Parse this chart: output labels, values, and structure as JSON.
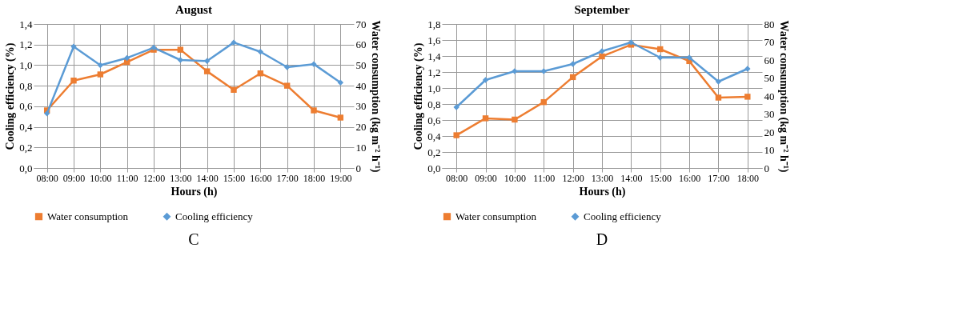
{
  "chart_data": [
    {
      "type": "line",
      "title": "August",
      "xlabel": "Hours (h)",
      "ylabel": "Cooling efficiency (%)",
      "y2label": "Water consumption (kg m⁻² h⁻¹)",
      "categories": [
        "08:00",
        "09:00",
        "10:00",
        "11:00",
        "12:00",
        "13:00",
        "14:00",
        "15:00",
        "16:00",
        "17:00",
        "18:00",
        "19:00"
      ],
      "series": [
        {
          "name": "Water consumption",
          "color": "#ed7d31",
          "axis": "y2",
          "marker": "square",
          "values": [
            28,
            42.5,
            45.5,
            51.5,
            57.5,
            57.5,
            47,
            38,
            46,
            40,
            28,
            24.5
          ]
        },
        {
          "name": "Cooling efficiency",
          "color": "#5b9bd5",
          "marker": "diamond",
          "values": [
            0.53,
            1.18,
            1.0,
            1.07,
            1.17,
            1.05,
            1.04,
            1.22,
            1.13,
            0.98,
            1.01,
            0.83
          ]
        }
      ],
      "ylim": [
        0,
        1.4
      ],
      "yticks": [
        {
          "value": 0,
          "label": "0,0"
        },
        {
          "value": 0.2,
          "label": "0,2"
        },
        {
          "value": 0.4,
          "label": "0,4"
        },
        {
          "value": 0.6,
          "label": "0,6"
        },
        {
          "value": 0.8,
          "label": "0,8"
        },
        {
          "value": 1.0,
          "label": "1,0"
        },
        {
          "value": 1.2,
          "label": "1,2"
        },
        {
          "value": 1.4,
          "label": "1,4"
        }
      ],
      "y2lim": [
        0,
        70
      ],
      "y2ticks": [
        0,
        10,
        20,
        30,
        40,
        50,
        60,
        70
      ],
      "grid": true,
      "legend": "bottom",
      "annotations": [
        "C"
      ]
    },
    {
      "type": "line",
      "title": "September",
      "xlabel": "Hours (h)",
      "ylabel": "Cooling efficiency (%)",
      "y2label": "Water consumption (kg m⁻² h⁻¹)",
      "categories": [
        "08:00",
        "09:00",
        "10:00",
        "11:00",
        "12:00",
        "13:00",
        "14:00",
        "15:00",
        "16:00",
        "17:00",
        "18:00"
      ],
      "series": [
        {
          "name": "Water consumption",
          "color": "#ed7d31",
          "axis": "y2",
          "marker": "square",
          "values": [
            18.2,
            27.6,
            26.9,
            36.6,
            50.5,
            62.0,
            68.5,
            66.0,
            59.4,
            39.1,
            39.6
          ]
        },
        {
          "name": "Cooling efficiency",
          "color": "#5b9bd5",
          "marker": "diamond",
          "values": [
            0.76,
            1.1,
            1.21,
            1.21,
            1.3,
            1.46,
            1.57,
            1.38,
            1.38,
            1.08,
            1.24
          ]
        }
      ],
      "ylim": [
        0,
        1.8
      ],
      "yticks": [
        {
          "value": 0,
          "label": "0,0"
        },
        {
          "value": 0.2,
          "label": "0,2"
        },
        {
          "value": 0.4,
          "label": "0,4"
        },
        {
          "value": 0.6,
          "label": "0,6"
        },
        {
          "value": 0.8,
          "label": "0,8"
        },
        {
          "value": 1.0,
          "label": "1,0"
        },
        {
          "value": 1.2,
          "label": "1,2"
        },
        {
          "value": 1.4,
          "label": "1,4"
        },
        {
          "value": 1.6,
          "label": "1,6"
        },
        {
          "value": 1.8,
          "label": "1,8"
        }
      ],
      "y2lim": [
        0,
        80
      ],
      "y2ticks": [
        0,
        10,
        20,
        30,
        40,
        50,
        60,
        70,
        80
      ],
      "grid": true,
      "legend": "bottom",
      "annotations": [
        "D"
      ]
    }
  ]
}
